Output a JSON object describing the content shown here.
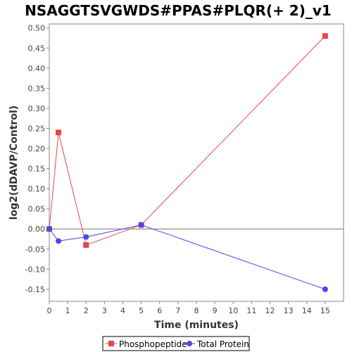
{
  "chart_data": {
    "type": "line",
    "title": "NSAGGTSVGWDS#PPAS#PLQR(+ 2)_v1",
    "xlabel": "Time (minutes)",
    "ylabel": "log2(dDAVP/Control)",
    "xlim": [
      0,
      16
    ],
    "ylim": [
      -0.18,
      0.51
    ],
    "x_ticks": [
      0,
      1,
      2,
      3,
      4,
      5,
      6,
      7,
      8,
      9,
      10,
      11,
      12,
      13,
      14,
      15
    ],
    "y_ticks": [
      -0.15,
      -0.1,
      -0.05,
      0.0,
      0.05,
      0.1,
      0.15,
      0.2,
      0.25,
      0.3,
      0.35,
      0.4,
      0.45,
      0.5
    ],
    "zero_line": true,
    "legend_position": "bottom",
    "series": [
      {
        "name": "Phosphopeptide",
        "color": "#e8474a",
        "marker": "square",
        "x": [
          0,
          0.5,
          2,
          5,
          15
        ],
        "values": [
          0.0,
          0.24,
          -0.04,
          0.01,
          0.48
        ]
      },
      {
        "name": "Total Protein",
        "color": "#4a4ae8",
        "marker": "circle",
        "x": [
          0,
          0.5,
          2,
          5,
          15
        ],
        "values": [
          0.0,
          -0.03,
          -0.02,
          0.01,
          -0.15
        ]
      }
    ]
  }
}
